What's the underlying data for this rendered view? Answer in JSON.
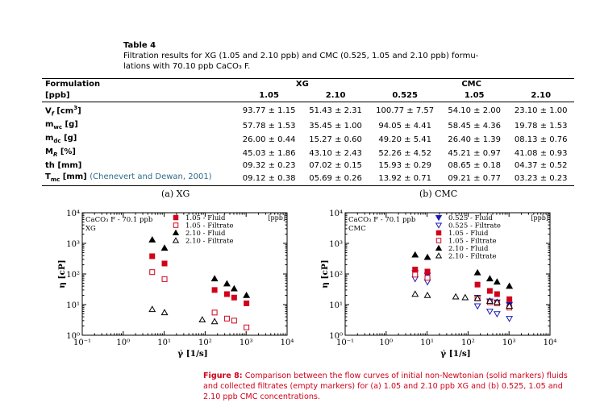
{
  "table": {
    "title": "Table 4",
    "caption_line1": "Filtration results for XG (1.05 and 2.10 ppb) and CMC (0.525, 1.05 and 2.10 ppb) formu-",
    "caption_line2": "lations with 70.10 ppb CaCO₃ F.",
    "header1": [
      "Formulation",
      "XG",
      "CMC"
    ],
    "header2": [
      "[ppb]",
      "1.05",
      "2.10",
      "0.525",
      "1.05",
      "2.10"
    ],
    "rows": [
      {
        "label": "V_f [cm³]",
        "cells": [
          "93.77 ± 1.15",
          "51.43 ± 2.31",
          "100.77 ± 7.57",
          "54.10 ± 2.00",
          "23.10 ± 1.00"
        ]
      },
      {
        "label": "m_wc [g]",
        "cells": [
          "57.78 ± 1.53",
          "35.45 ± 1.00",
          "94.05 ± 4.41",
          "58.45 ± 4.36",
          "19.78 ± 1.53"
        ]
      },
      {
        "label": "m_dc [g]",
        "cells": [
          "26.00 ± 0.44",
          "15.27 ± 0.60",
          "49.20 ± 5.41",
          "26.40 ± 1.39",
          "08.13 ± 0.76"
        ]
      },
      {
        "label": "M_R [%]",
        "cells": [
          "45.03 ± 1.86",
          "43.10 ± 2.43",
          "52.26 ± 4.52",
          "45.21 ± 0.97",
          "41.08 ± 0.93"
        ]
      },
      {
        "label": "th [mm]",
        "cells": [
          "09.32 ± 0.23",
          "07.02 ± 0.15",
          "15.93 ± 0.29",
          "08.65 ± 0.18",
          "04.37 ± 0.52"
        ]
      },
      {
        "label": "T_mc [mm]",
        "cite": "(Chenevert and Dewan, 2001)",
        "cells": [
          "09.12 ± 0.38",
          "05.69 ± 0.26",
          "13.92 ± 0.71",
          "09.21 ± 0.77",
          "03.23 ± 0.23"
        ]
      }
    ]
  },
  "subcaptions": {
    "a": "(a) XG",
    "b": "(b) CMC"
  },
  "chart_data": [
    {
      "type": "scatter",
      "title": "",
      "xlabel": "γ̇ [1/s]",
      "ylabel": "η [cP]",
      "xscale": "log",
      "yscale": "log",
      "xlim": [
        0.1,
        10000
      ],
      "ylim": [
        1,
        10000
      ],
      "xticks": [
        "10⁻¹",
        "10⁰",
        "10¹",
        "10²",
        "10³",
        "10⁴"
      ],
      "yticks": [
        "10⁰",
        "10¹",
        "10²",
        "10³",
        "10⁴"
      ],
      "annotation": [
        "CaCO₃ F - 70.1 ppb",
        "XG"
      ],
      "legend_unit": "[ppb]",
      "legend_position": "top-right",
      "series": [
        {
          "name": "1.05 - Fluid",
          "marker": "square",
          "filled": true,
          "color": "#d0021b",
          "x": [
            5.1,
            10.2,
            170,
            340,
            510,
            1020
          ],
          "y": [
            380,
            220,
            30,
            22,
            17,
            11
          ]
        },
        {
          "name": "1.05 - Filtrate",
          "marker": "square",
          "filled": false,
          "color": "#d0021b",
          "x": [
            5.1,
            10.2,
            170,
            340,
            510,
            1020
          ],
          "y": [
            115,
            68,
            5.5,
            3.5,
            3.0,
            1.8
          ]
        },
        {
          "name": "2.10 - Fluid",
          "marker": "triangle",
          "filled": true,
          "color": "#000000",
          "x": [
            5.1,
            10.2,
            170,
            340,
            510,
            1020
          ],
          "y": [
            1300,
            700,
            70,
            48,
            33,
            20
          ]
        },
        {
          "name": "2.10 - Filtrate",
          "marker": "triangle",
          "filled": false,
          "color": "#000000",
          "x": [
            5.1,
            10.2,
            85,
            170
          ],
          "y": [
            7,
            5.5,
            3.2,
            2.8
          ]
        }
      ]
    },
    {
      "type": "scatter",
      "title": "",
      "xlabel": "γ̇ [1/s]",
      "ylabel": "η [cP]",
      "xscale": "log",
      "yscale": "log",
      "xlim": [
        0.1,
        10000
      ],
      "ylim": [
        1,
        10000
      ],
      "xticks": [
        "10⁻¹",
        "10⁰",
        "10¹",
        "10²",
        "10³",
        "10⁴"
      ],
      "yticks": [
        "10⁰",
        "10¹",
        "10²",
        "10³",
        "10⁴"
      ],
      "annotation": [
        "CaCO₃ F - 70.1 ppb",
        "CMC"
      ],
      "legend_unit": "[ppb]",
      "legend_position": "top-right",
      "series": [
        {
          "name": "0.525 - Fluid",
          "marker": "triangle-down",
          "filled": true,
          "color": "#1a1ab8",
          "x": [
            5.1,
            10.2,
            170,
            340,
            510,
            1020
          ],
          "y": [
            110,
            90,
            17,
            13,
            12,
            10
          ]
        },
        {
          "name": "0.525 - Filtrate",
          "marker": "triangle-down",
          "filled": false,
          "color": "#1a1ab8",
          "x": [
            5.1,
            10.2,
            170,
            340,
            510,
            1020
          ],
          "y": [
            70,
            55,
            9,
            6,
            5,
            3.5
          ]
        },
        {
          "name": "1.05 - Fluid",
          "marker": "square",
          "filled": true,
          "color": "#d0021b",
          "x": [
            5.1,
            10.2,
            170,
            340,
            510,
            1020
          ],
          "y": [
            140,
            120,
            45,
            28,
            22,
            15
          ]
        },
        {
          "name": "1.05 - Filtrate",
          "marker": "square",
          "filled": false,
          "color": "#d0021b",
          "x": [
            5.1,
            10.2,
            170,
            340,
            510,
            1020
          ],
          "y": [
            95,
            75,
            16,
            12,
            11,
            8
          ]
        },
        {
          "name": "2.10 - Fluid",
          "marker": "triangle",
          "filled": true,
          "color": "#000000",
          "x": [
            5.1,
            10.2,
            170,
            340,
            510,
            1020
          ],
          "y": [
            420,
            350,
            110,
            70,
            55,
            40
          ]
        },
        {
          "name": "2.10 - Filtrate",
          "marker": "triangle",
          "filled": false,
          "color": "#000000",
          "x": [
            5.1,
            10.2,
            50,
            85,
            170,
            340,
            510,
            1020
          ],
          "y": [
            22,
            20,
            18,
            17,
            16,
            13,
            12,
            9
          ]
        }
      ]
    }
  ],
  "figure_caption": {
    "label": "Figure 8:",
    "text": "Comparison between the flow curves of initial non-Newtonian (solid markers) fluids and collected filtrates (empty markers) for (a) 1.05 and 2.10 ppb XG and (b) 0.525, 1.05 and 2.10 ppb CMC concentrations."
  }
}
